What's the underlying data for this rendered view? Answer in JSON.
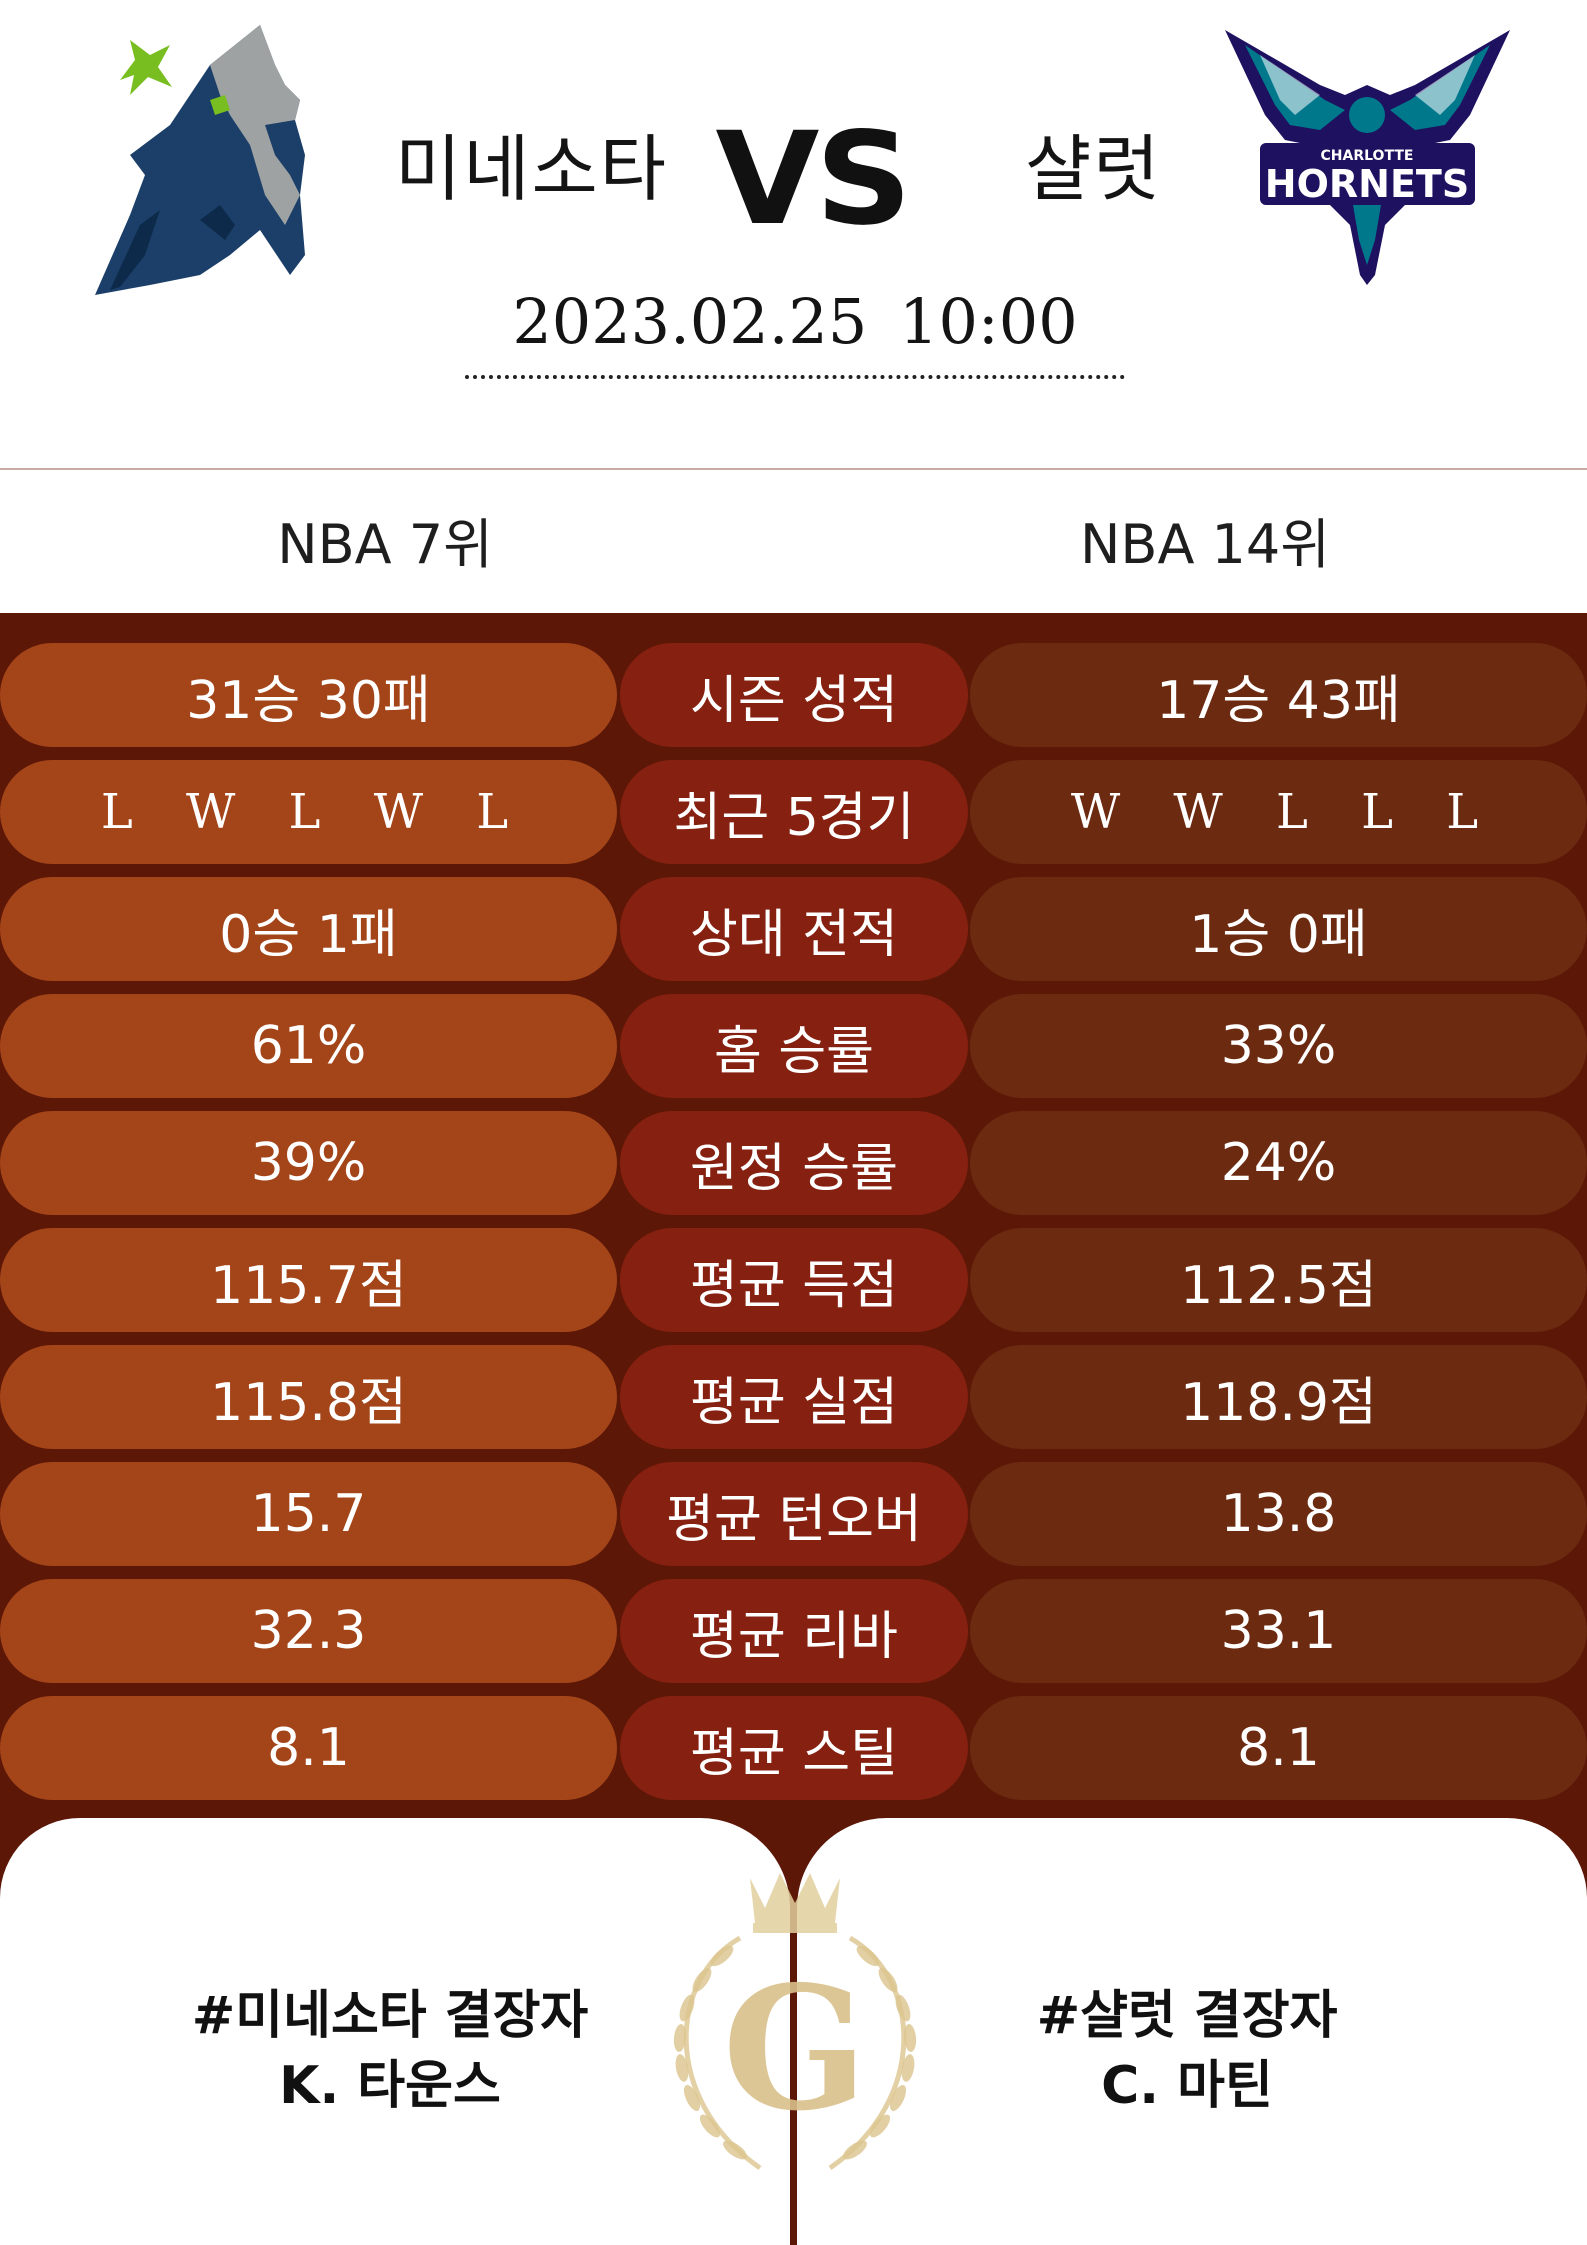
{
  "match": {
    "home_team": "미네소타",
    "away_team": "샬럿",
    "vs_label": "VS",
    "datetime": "2023.02.25  10:00"
  },
  "logos": {
    "home": "timberwolves-logo",
    "away": "hornets-logo",
    "away_logo_text_top": "CHARLOTTE",
    "away_logo_text_main": "HORNETS"
  },
  "ranks": {
    "home": "NBA 7위",
    "away": "NBA 14위"
  },
  "stats": [
    {
      "label": "시즌 성적",
      "home": "31승 30패",
      "away": "17승 43패"
    },
    {
      "label": "최근 5경기",
      "home": "L W L W L",
      "away": "W W L L L"
    },
    {
      "label": "상대 전적",
      "home": "0승 1패",
      "away": "1승 0패"
    },
    {
      "label": "홈 승률",
      "home": "61%",
      "away": "33%"
    },
    {
      "label": "원정 승률",
      "home": "39%",
      "away": "24%"
    },
    {
      "label": "평균 득점",
      "home": "115.7점",
      "away": "112.5점"
    },
    {
      "label": "평균 실점",
      "home": "115.8점",
      "away": "118.9점"
    },
    {
      "label": "평균 턴오버",
      "home": "15.7",
      "away": "13.8"
    },
    {
      "label": "평균 리바",
      "home": "32.3",
      "away": "33.1"
    },
    {
      "label": "평균 스틸",
      "home": "8.1",
      "away": "8.1"
    }
  ],
  "absences": {
    "home_title": "#미네소타 결장자",
    "home_players": "K. 타운스",
    "away_title": "#샬럿 결장자",
    "away_players": "C. 마틴"
  },
  "emblem": {
    "letter": "G",
    "icon": "crown-laurel-icon"
  },
  "colors": {
    "background_dark": "#5c1707",
    "pill_home": "#a44419",
    "pill_label": "#862010",
    "pill_away": "#6c2a10",
    "gold": "#d9c08a"
  }
}
